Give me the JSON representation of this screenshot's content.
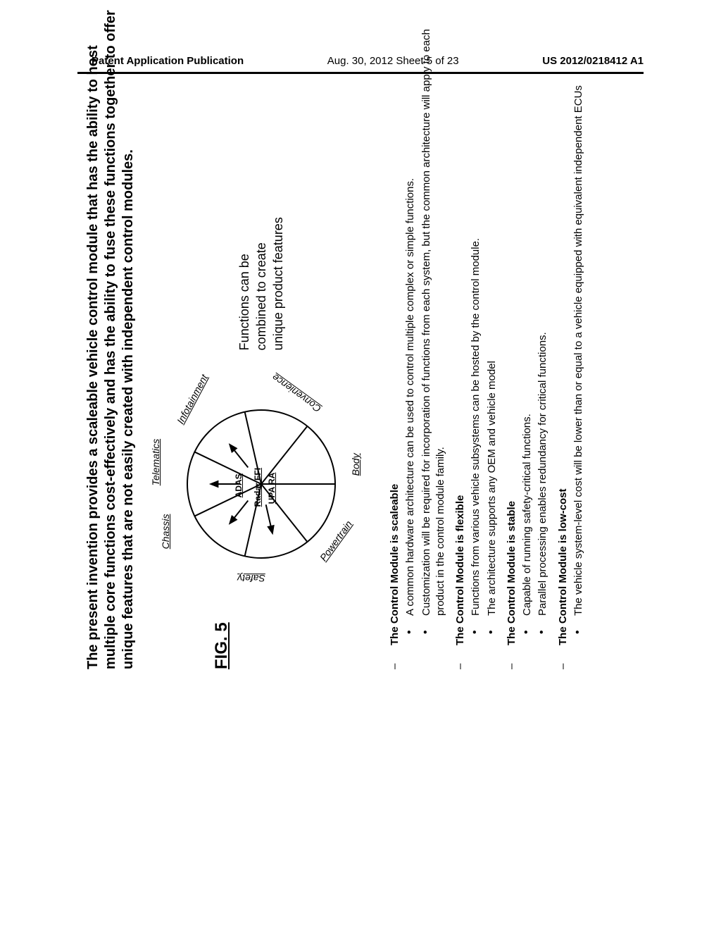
{
  "header": {
    "left": "Patent Application Publication",
    "center": "Aug. 30, 2012  Sheet 5 of 23",
    "right": "US 2012/0218412 A1"
  },
  "title": "The present invention provides a scaleable vehicle control module that has the ability to host multiple core functions cost-effectively and has the ability to fuse these functions together to offer unique features that are not easily created with independent control modules.",
  "figure_label": "FIG. 5",
  "diagram": {
    "sectors": [
      "Chassis",
      "Telematics",
      "Infotainment",
      "Convenience",
      "Body",
      "Powertrain",
      "Safety"
    ],
    "inner_labels": [
      "ADAS",
      "Radar  FFI",
      "UPA  RA"
    ],
    "n_sectors": 7,
    "outer_radius": 105,
    "inner_lines_start": 30,
    "inner_lines_end": 75,
    "stroke": "#000000",
    "stroke_width": 2
  },
  "caption_lines": [
    "Functions can be",
    "combined to create",
    "unique product features"
  ],
  "bullets": [
    {
      "h": "The Control Module is scaleable",
      "items": [
        "A common hardware architecture can be used to control multiple complex or simple functions.",
        "Customization will be required for incorporation of functions from each system, but the common architecture will apply to each product in the control module family."
      ]
    },
    {
      "h": "The Control Module is flexible",
      "items": [
        "Functions from various vehicle subsystems can be hosted by the control module.",
        "The architecture supports any OEM and vehicle model"
      ]
    },
    {
      "h": "The Control Module is stable",
      "items": [
        "Capable of running safety-critical functions.",
        "Parallel processing enables redundancy for critical functions."
      ]
    },
    {
      "h": "The Control Module is low-cost",
      "items": [
        "The vehicle system-level cost will be lower than or equal to a vehicle equipped with equivalent independent ECUs"
      ]
    }
  ]
}
